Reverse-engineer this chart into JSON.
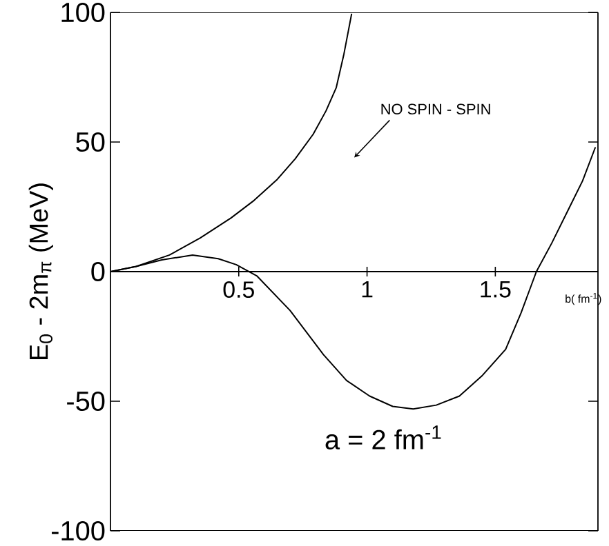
{
  "chart_data": {
    "type": "line",
    "xlabel": "b( fm$^{-1}$)",
    "ylabel": "E$_{0}$ - 2m$_{π}$  (MeV)",
    "xlim": [
      0,
      1.9
    ],
    "ylim": [
      -100,
      100
    ],
    "xticks": [
      0.5,
      1,
      1.5
    ],
    "yticks": [
      -100,
      -50,
      0,
      50,
      100
    ],
    "line_style": "solid",
    "series": [
      {
        "color": "#000000",
        "x": [
          0,
          0.1,
          0.23,
          0.35,
          0.47,
          0.56,
          0.65,
          0.72,
          0.79,
          0.84,
          0.88,
          0.91,
          0.94
        ],
        "values": [
          0,
          2,
          6.4,
          13,
          20.7,
          27.5,
          35.6,
          43.5,
          53,
          62,
          71,
          84,
          99.5
        ]
      },
      {
        "color": "#000000",
        "x": [
          0,
          0.1,
          0.2,
          0.32,
          0.42,
          0.49,
          0.57,
          0.7,
          0.83,
          0.92,
          1.01,
          1.1,
          1.18,
          1.27,
          1.36,
          1.45,
          1.54,
          1.6,
          1.66,
          1.72,
          1.78,
          1.84,
          1.89
        ],
        "values": [
          0,
          2,
          4.5,
          6.4,
          5,
          2.7,
          -1.6,
          -15,
          -32,
          -42,
          -48,
          -52,
          -53,
          -51.5,
          -48,
          -40,
          -30,
          -16,
          0,
          11,
          23,
          35,
          48
        ]
      }
    ],
    "annotations": [
      "NO  SPIN - SPIN",
      "a = 2 fm$^{-1}$"
    ]
  }
}
